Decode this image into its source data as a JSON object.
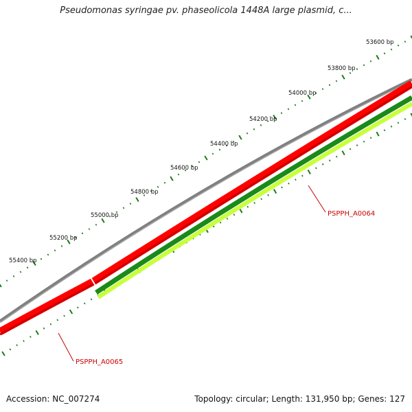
{
  "title": "Pseudomonas syringae pv. phaseolicola 1448A large plasmid, c...",
  "footer": {
    "accession": "Accession: NC_007274",
    "summary": "Topology: circular; Length: 131,950 bp; Genes: 127"
  },
  "ruler": {
    "ticks": [
      {
        "label": "53600 bp",
        "bp": 53600
      },
      {
        "label": "53800 bp",
        "bp": 53800
      },
      {
        "label": "54000 bp",
        "bp": 54000
      },
      {
        "label": "54200 bp",
        "bp": 54200
      },
      {
        "label": "54400 bp",
        "bp": 54400
      },
      {
        "label": "54600 bp",
        "bp": 54600
      },
      {
        "label": "54800 bp",
        "bp": 54800
      },
      {
        "label": "55000 bp",
        "bp": 55000
      },
      {
        "label": "55200 bp",
        "bp": 55200
      },
      {
        "label": "55400 bp",
        "bp": 55400
      }
    ]
  },
  "genes": [
    {
      "name": "PSPPH_A0064",
      "color": "#cc0000"
    },
    {
      "name": "PSPPH_A0065",
      "color": "#cc0000"
    }
  ],
  "colors": {
    "backbone": "#808080",
    "gene_forward": "#ff0000",
    "cds_dark": "#1a8a1a",
    "cds_light": "#c8ff3c",
    "ruler": "#1a7a1a"
  }
}
